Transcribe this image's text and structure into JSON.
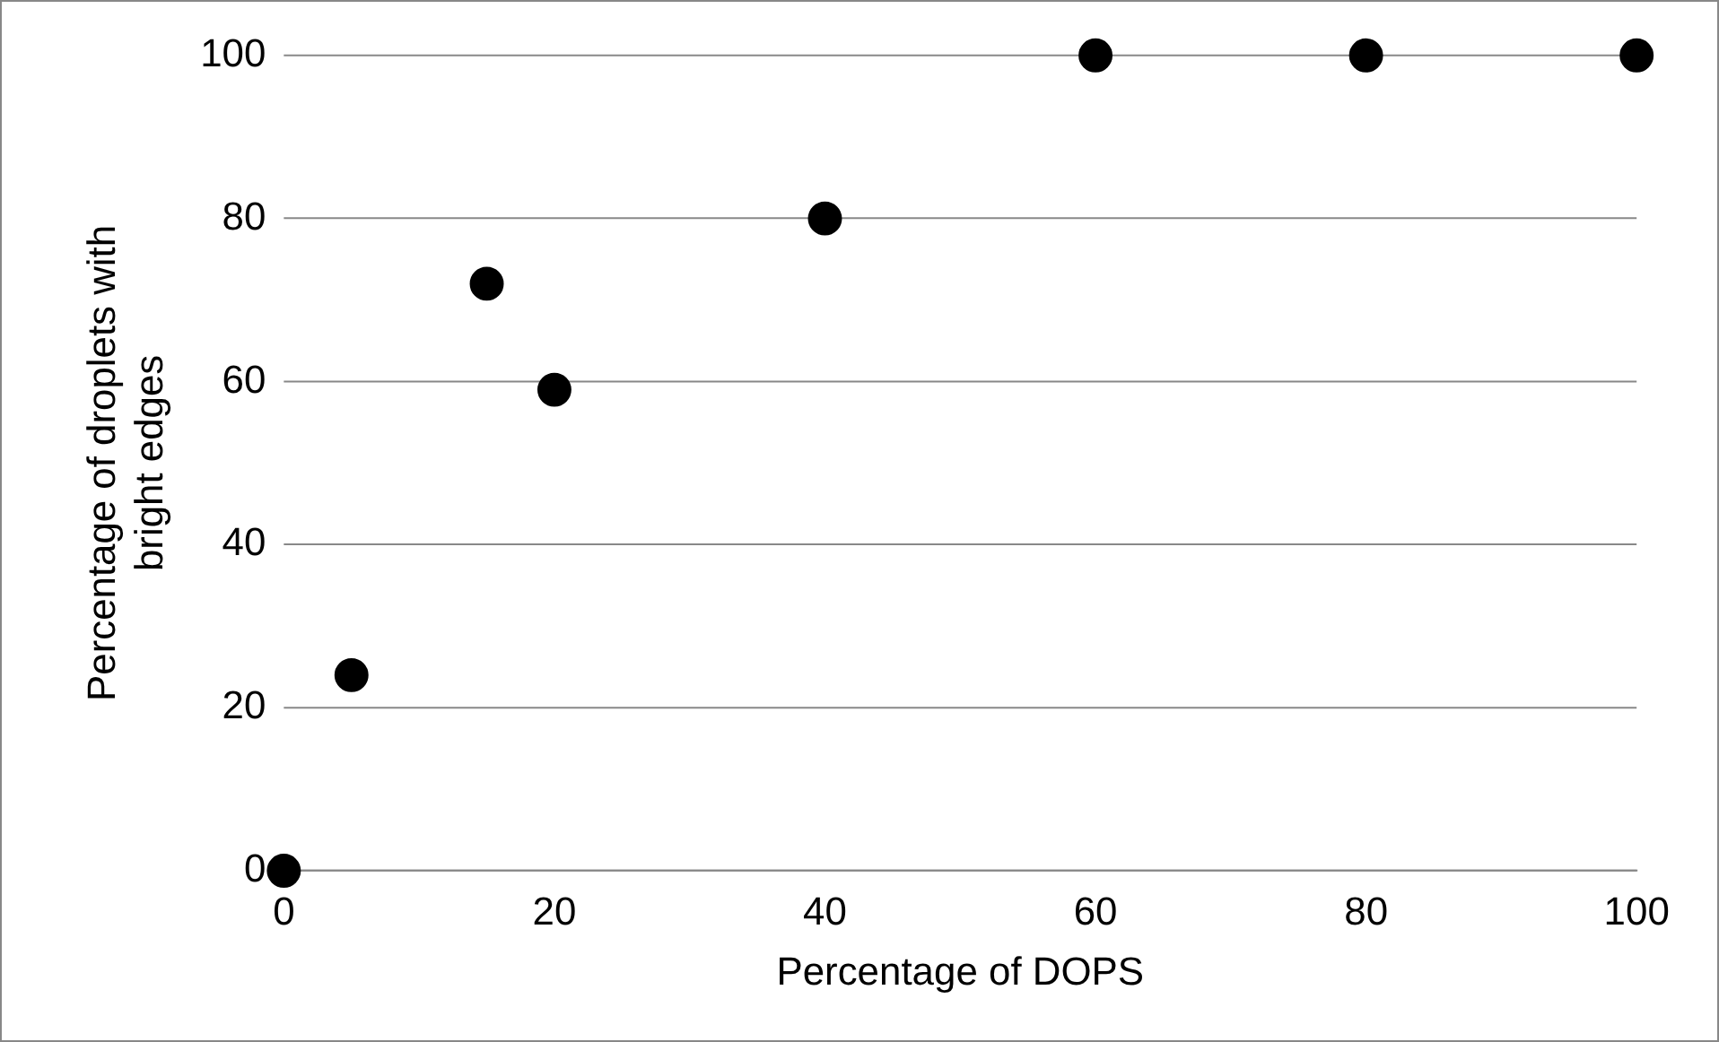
{
  "chart_data": {
    "type": "scatter",
    "xlabel": "Percentage of DOPS",
    "ylabel": "Percentage of droplets with\nbright edges",
    "x": [
      0,
      5,
      15,
      20,
      40,
      60,
      80,
      100
    ],
    "series": [
      {
        "color": "#000000",
        "values": [
          0,
          24,
          72,
          59,
          80,
          100,
          100,
          100
        ]
      }
    ],
    "xlim": [
      0,
      100
    ],
    "xticks": [
      0,
      20,
      40,
      60,
      80,
      100
    ],
    "ylim": [
      0,
      100
    ],
    "yticks": [
      0,
      20,
      40,
      60,
      80,
      100
    ],
    "grid": "y",
    "legend": false,
    "marker": "circle"
  }
}
